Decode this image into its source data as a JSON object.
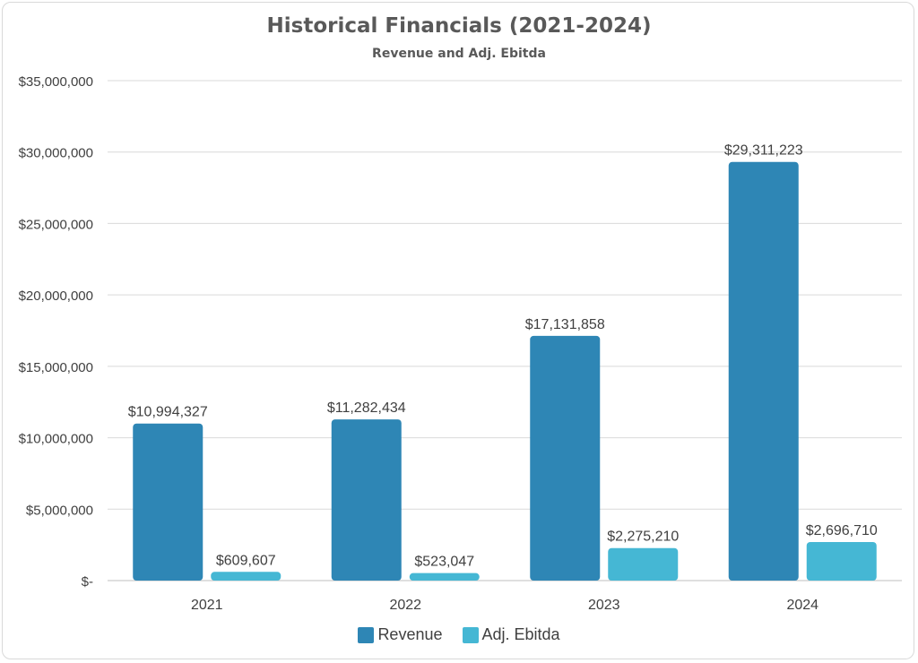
{
  "chart_data": {
    "type": "bar",
    "title": "Historical Financials (2021-2024)",
    "subtitle": "Revenue and Adj. Ebitda",
    "categories": [
      "2021",
      "2022",
      "2023",
      "2024"
    ],
    "series": [
      {
        "name": "Revenue",
        "color": "#2e86b5",
        "values": [
          10994327,
          11282434,
          17131858,
          29311223
        ],
        "labels": [
          "$10,994,327",
          "$11,282,434",
          "$17,131,858",
          "$29,311,223"
        ]
      },
      {
        "name": "Adj. Ebitda",
        "color": "#45b7d4",
        "values": [
          609607,
          523047,
          2275210,
          2696710
        ],
        "labels": [
          "$609,607",
          "$523,047",
          "$2,275,210",
          "$2,696,710"
        ]
      }
    ],
    "ylim": [
      0,
      35000000
    ],
    "yticks": [
      0,
      5000000,
      10000000,
      15000000,
      20000000,
      25000000,
      30000000,
      35000000
    ],
    "ytick_labels": [
      "$-",
      "$5,000,000",
      "$10,000,000",
      "$15,000,000",
      "$20,000,000",
      "$25,000,000",
      "$30,000,000",
      "$35,000,000"
    ],
    "grid": true,
    "legend": "bottom"
  }
}
